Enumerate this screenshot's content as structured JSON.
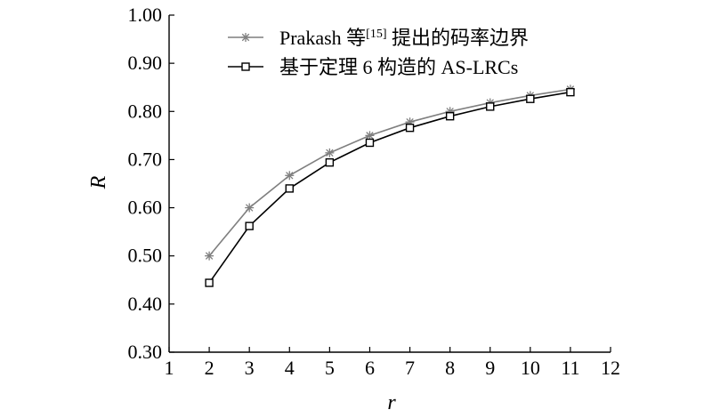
{
  "chart_data": {
    "type": "line",
    "xlabel": "r",
    "ylabel": "R",
    "xlim": [
      1,
      12
    ],
    "ylim": [
      0.3,
      1.0
    ],
    "xticks": [
      "1",
      "2",
      "3",
      "4",
      "5",
      "6",
      "7",
      "8",
      "9",
      "10",
      "11",
      "12"
    ],
    "yticks": [
      "0.30",
      "0.40",
      "0.50",
      "0.60",
      "0.70",
      "0.80",
      "0.90",
      "1.00"
    ],
    "grid": false,
    "legend_position": "top-right",
    "x": [
      2,
      3,
      4,
      5,
      6,
      7,
      8,
      9,
      10,
      11
    ],
    "series": [
      {
        "name": "Prakash 等[15] 提出的码率边界",
        "name_main": "Prakash 等",
        "name_sup": "[15]",
        "name_rest": " 提出的码率边界",
        "marker": "asterisk",
        "color": "#7f7f7f",
        "values": [
          0.5,
          0.6,
          0.667,
          0.714,
          0.75,
          0.778,
          0.8,
          0.818,
          0.833,
          0.846
        ]
      },
      {
        "name": "基于定理 6 构造的 AS-LRCs",
        "marker": "square",
        "color": "#000000",
        "values": [
          0.444,
          0.562,
          0.64,
          0.694,
          0.735,
          0.766,
          0.79,
          0.81,
          0.826,
          0.84
        ]
      }
    ]
  }
}
